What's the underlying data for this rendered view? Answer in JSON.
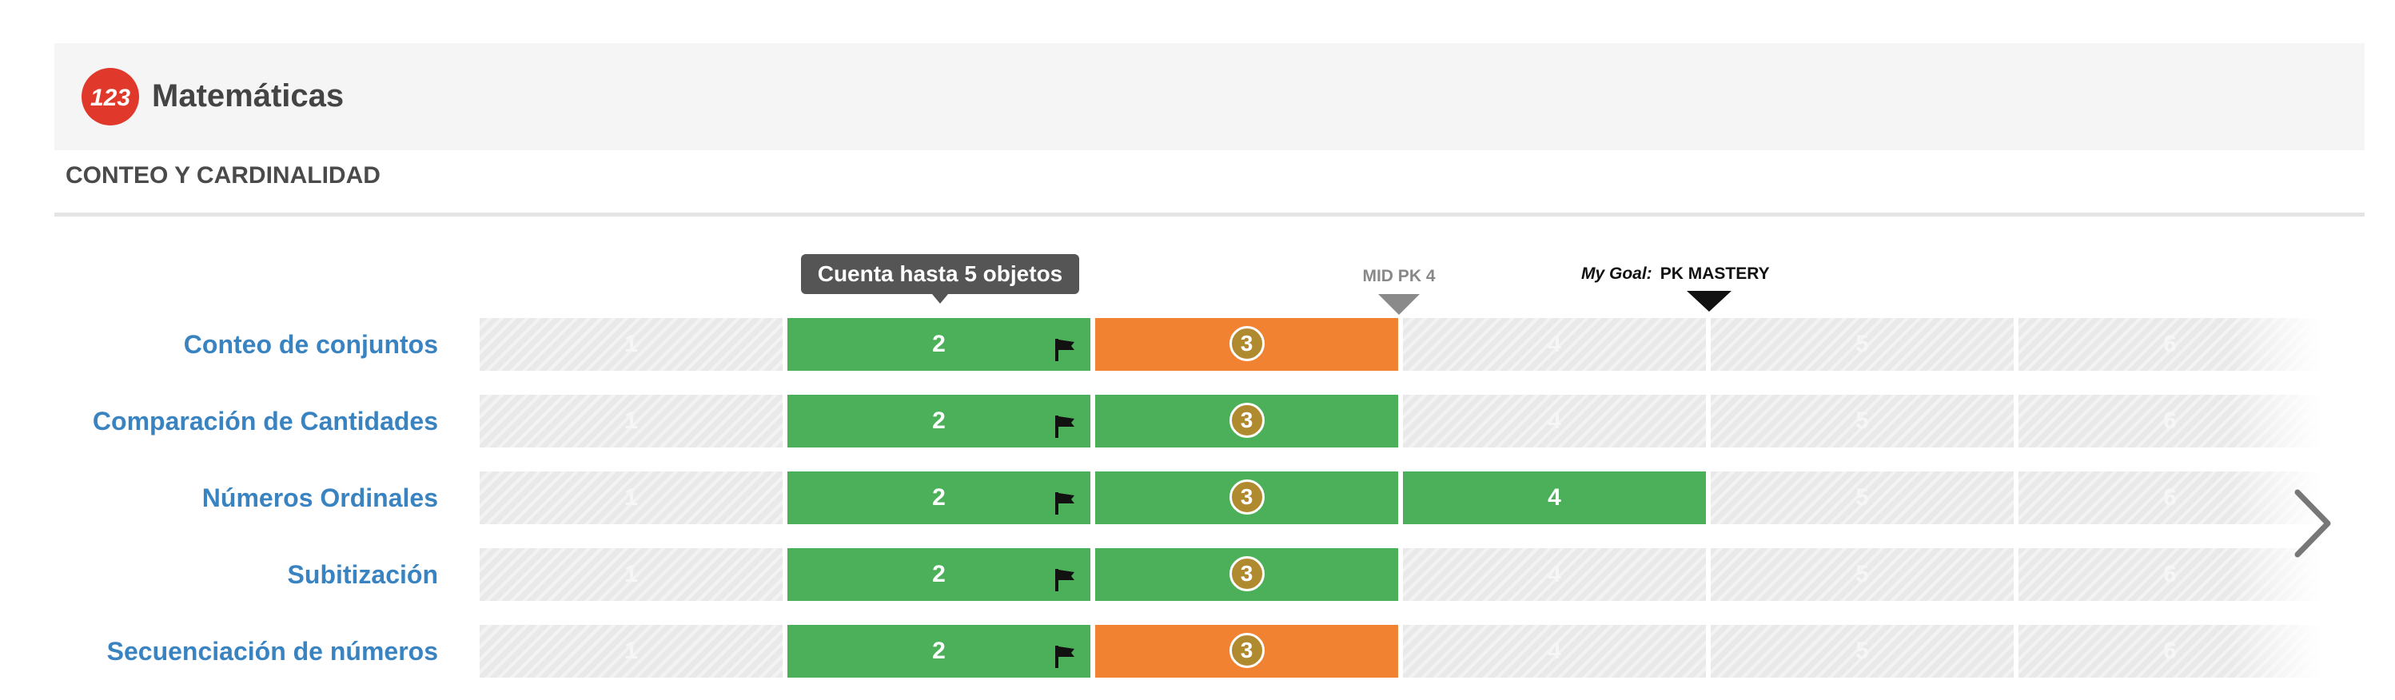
{
  "header": {
    "title": "Matemáticas",
    "logo_text": "123"
  },
  "section": {
    "title": "CONTEO Y CARDINALIDAD"
  },
  "tooltip": {
    "text": "Cuenta hasta 5 objetos"
  },
  "markers": {
    "mid": {
      "label": "MID PK 4"
    },
    "goal": {
      "prefix": "My Goal:",
      "label": "PK MASTERY"
    }
  },
  "colors": {
    "mastered": "#4caf5a",
    "in_progress": "#f08232",
    "empty": "#e9e9e9",
    "current_circle": "#b08a2e",
    "label": "#3a83c1"
  },
  "rows": [
    {
      "label": "Conteo de conjuntos",
      "levels": [
        {
          "value": "1",
          "status": "empty"
        },
        {
          "value": "2",
          "status": "mastered",
          "flag": true
        },
        {
          "value": "3",
          "status": "in_progress",
          "current": true
        },
        {
          "value": "4",
          "status": "empty"
        },
        {
          "value": "5",
          "status": "empty"
        },
        {
          "value": "6",
          "status": "empty"
        }
      ]
    },
    {
      "label": "Comparación de Cantidades",
      "levels": [
        {
          "value": "1",
          "status": "empty"
        },
        {
          "value": "2",
          "status": "mastered",
          "flag": true
        },
        {
          "value": "3",
          "status": "mastered",
          "current": true
        },
        {
          "value": "4",
          "status": "empty"
        },
        {
          "value": "5",
          "status": "empty"
        },
        {
          "value": "6",
          "status": "empty"
        }
      ]
    },
    {
      "label": "Números Ordinales",
      "levels": [
        {
          "value": "1",
          "status": "empty"
        },
        {
          "value": "2",
          "status": "mastered",
          "flag": true
        },
        {
          "value": "3",
          "status": "mastered",
          "current": true
        },
        {
          "value": "4",
          "status": "mastered"
        },
        {
          "value": "5",
          "status": "empty"
        },
        {
          "value": "6",
          "status": "empty"
        }
      ]
    },
    {
      "label": "Subitización",
      "levels": [
        {
          "value": "1",
          "status": "empty"
        },
        {
          "value": "2",
          "status": "mastered",
          "flag": true
        },
        {
          "value": "3",
          "status": "mastered",
          "current": true
        },
        {
          "value": "4",
          "status": "empty"
        },
        {
          "value": "5",
          "status": "empty"
        },
        {
          "value": "6",
          "status": "empty"
        }
      ]
    },
    {
      "label": "Secuenciación de números",
      "levels": [
        {
          "value": "1",
          "status": "empty"
        },
        {
          "value": "2",
          "status": "mastered",
          "flag": true
        },
        {
          "value": "3",
          "status": "in_progress",
          "current": true
        },
        {
          "value": "4",
          "status": "empty"
        },
        {
          "value": "5",
          "status": "empty"
        },
        {
          "value": "6",
          "status": "empty"
        }
      ]
    }
  ],
  "navigation": {
    "next_icon": "chevron-right-icon"
  }
}
